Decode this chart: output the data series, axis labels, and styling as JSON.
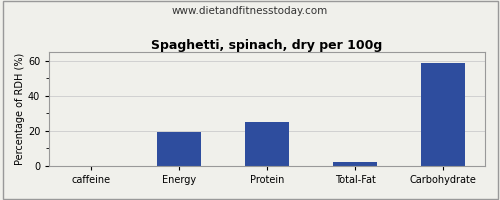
{
  "title": "Spaghetti, spinach, dry per 100g",
  "subtitle": "www.dietandfitnesstoday.com",
  "categories": [
    "caffeine",
    "Energy",
    "Protein",
    "Total-Fat",
    "Carbohydrate"
  ],
  "values": [
    0,
    19.5,
    25,
    2.5,
    58.5
  ],
  "bar_color": "#2e4d9e",
  "ylabel": "Percentage of RDH (%)",
  "ylim": [
    0,
    65
  ],
  "yticks": [
    0,
    20,
    40,
    60
  ],
  "background_color": "#f0f0eb",
  "border_color": "#999999",
  "title_fontsize": 9,
  "subtitle_fontsize": 7.5,
  "label_fontsize": 7,
  "tick_fontsize": 7
}
